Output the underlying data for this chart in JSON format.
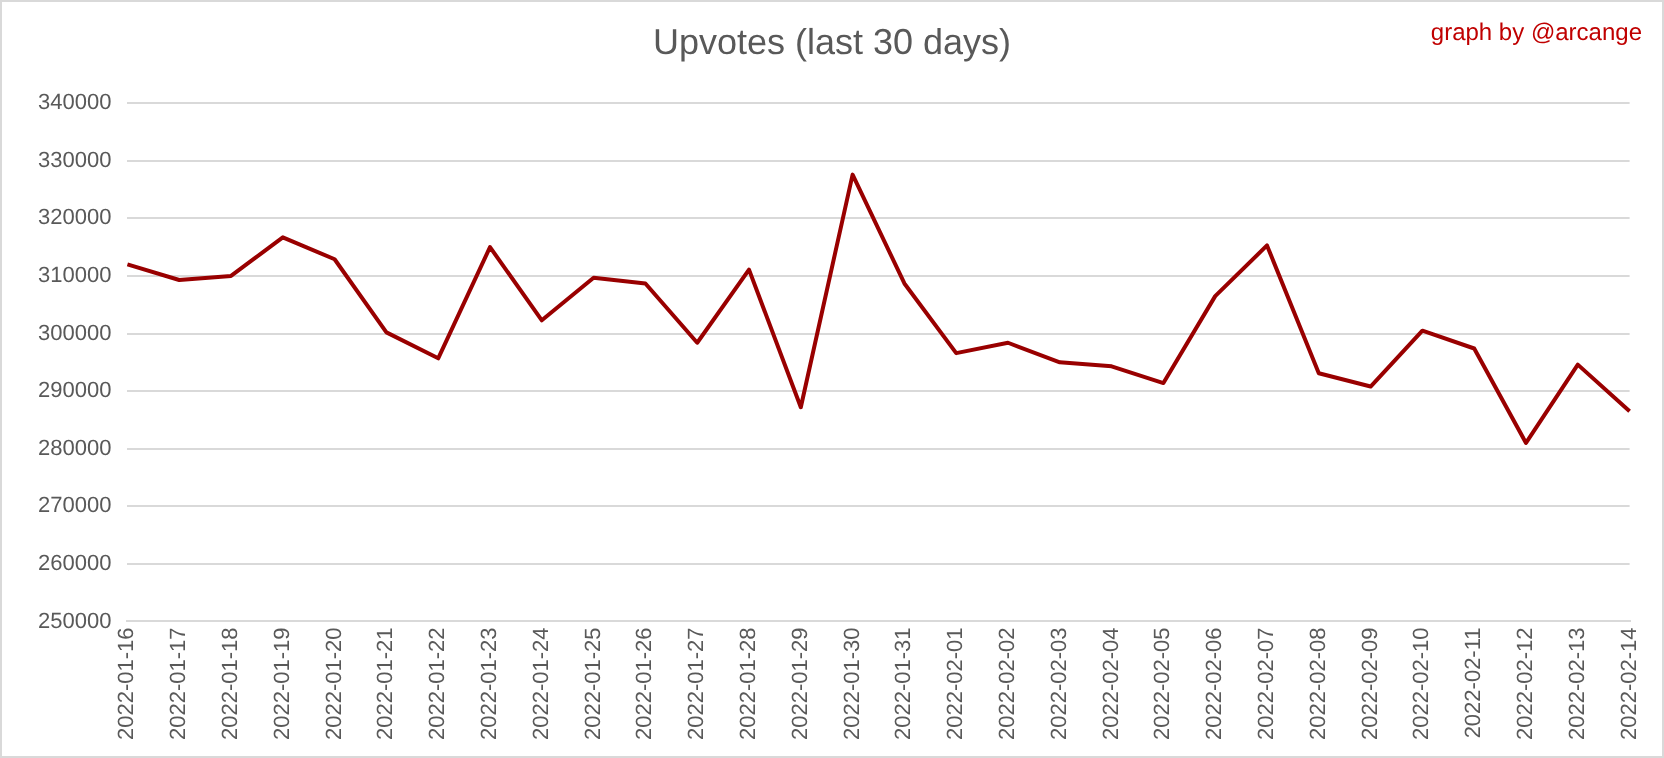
{
  "chart_data": {
    "type": "line",
    "title": "Upvotes (last 30 days)",
    "annotations": [
      "graph by @arcange"
    ],
    "categories": [
      "2022-01-16",
      "2022-01-17",
      "2022-01-18",
      "2022-01-19",
      "2022-01-20",
      "2022-01-21",
      "2022-01-22",
      "2022-01-23",
      "2022-01-24",
      "2022-01-25",
      "2022-01-26",
      "2022-01-27",
      "2022-01-28",
      "2022-01-29",
      "2022-01-30",
      "2022-01-31",
      "2022-02-01",
      "2022-02-02",
      "2022-02-03",
      "2022-02-04",
      "2022-02-05",
      "2022-02-06",
      "2022-02-07",
      "2022-02-08",
      "2022-02-09",
      "2022-02-10",
      "2022-02-11",
      "2022-02-12",
      "2022-02-13",
      "2022-02-14"
    ],
    "series": [
      {
        "color": "#990000",
        "values": [
          312000,
          309300,
          310000,
          316700,
          312900,
          300200,
          295700,
          315000,
          302300,
          309700,
          308700,
          298400,
          311100,
          287200,
          327600,
          308700,
          296600,
          298400,
          295000,
          294300,
          291400,
          306500,
          315300,
          293100,
          290800,
          300500,
          297400,
          281000,
          294600,
          286500
        ]
      }
    ],
    "ylim": [
      250000,
      340000
    ],
    "yticks": [
      250000,
      260000,
      270000,
      280000,
      290000,
      300000,
      310000,
      320000,
      330000,
      340000
    ],
    "grid": "y",
    "legend": false,
    "marker": "none",
    "line_style": "solid"
  }
}
